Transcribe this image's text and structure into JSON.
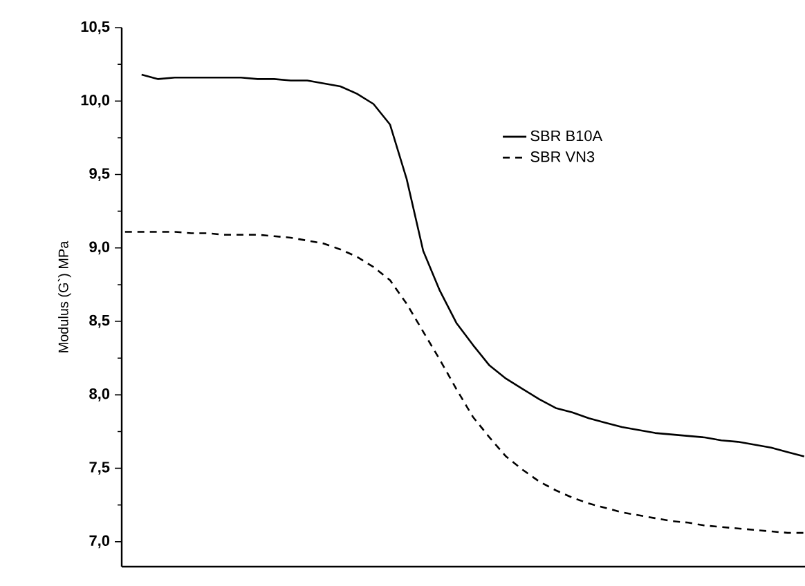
{
  "chart_data": {
    "type": "line",
    "ylabel": "Modulus (G`) MPa",
    "categories": [
      null,
      null,
      null,
      null,
      null,
      null,
      null,
      null,
      null,
      null,
      null,
      null,
      null,
      null,
      null,
      null,
      null,
      null,
      null,
      null,
      null,
      null,
      null,
      null,
      null,
      null,
      null,
      null,
      null,
      null,
      null,
      null,
      null,
      null,
      null,
      null,
      null,
      null,
      null,
      null,
      null,
      null
    ],
    "series": [
      {
        "name": "SBR B10A",
        "color": "#000000",
        "line_style": "solid",
        "values": [
          null,
          10.18,
          10.15,
          10.16,
          10.16,
          10.16,
          10.16,
          10.16,
          10.15,
          10.15,
          10.14,
          10.14,
          10.12,
          10.1,
          10.05,
          9.98,
          9.84,
          9.47,
          8.98,
          8.71,
          8.49,
          8.34,
          8.2,
          8.11,
          8.04,
          7.97,
          7.91,
          7.88,
          7.84,
          7.81,
          7.78,
          7.76,
          7.74,
          7.73,
          7.72,
          7.71,
          7.69,
          7.68,
          7.66,
          7.64,
          7.61,
          7.58
        ]
      },
      {
        "name": "SBR VN3",
        "color": "#000000",
        "line_style": "dashed",
        "values": [
          9.11,
          9.11,
          9.11,
          9.11,
          9.1,
          9.1,
          9.09,
          9.09,
          9.09,
          9.08,
          9.07,
          9.05,
          9.03,
          8.99,
          8.94,
          8.87,
          8.78,
          8.62,
          8.43,
          8.24,
          8.04,
          7.85,
          7.71,
          7.58,
          7.49,
          7.41,
          7.35,
          7.3,
          7.26,
          7.23,
          7.2,
          7.18,
          7.16,
          7.14,
          7.13,
          7.11,
          7.1,
          7.09,
          7.08,
          7.07,
          7.06,
          7.06
        ]
      }
    ],
    "ylim": [
      6.83,
      10.5
    ],
    "yticks": [
      {
        "value": 7.0,
        "label": "7,0"
      },
      {
        "value": 7.5,
        "label": "7,5"
      },
      {
        "value": 8.0,
        "label": "8,0"
      },
      {
        "value": 8.5,
        "label": "8,5"
      },
      {
        "value": 9.0,
        "label": "9,0"
      },
      {
        "value": 9.5,
        "label": "9,5"
      },
      {
        "value": 10.0,
        "label": "10,0"
      },
      {
        "value": 10.5,
        "label": "10,5"
      }
    ],
    "tick_labels": "y",
    "legend": "top right"
  }
}
